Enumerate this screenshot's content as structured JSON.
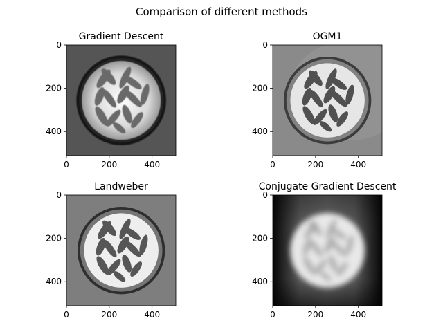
{
  "figure": {
    "suptitle": "Comparison of different methods"
  },
  "chart_data": [
    {
      "type": "heatmap",
      "title": "Gradient Descent",
      "xlim": [
        0,
        511
      ],
      "ylim": [
        511,
        0
      ],
      "xticks": [
        0,
        200,
        400
      ],
      "yticks": [
        0,
        200,
        400
      ],
      "colormap": "gray",
      "image": {
        "background": "#555555",
        "ring_color": "#151515",
        "disk_color": "#f4f4f4",
        "blob_color": "#6a6a6a",
        "halo": true,
        "blur": 0.6
      }
    },
    {
      "type": "heatmap",
      "title": "OGM1",
      "xlim": [
        0,
        511
      ],
      "ylim": [
        511,
        0
      ],
      "xticks": [
        0,
        200,
        400
      ],
      "yticks": [
        0,
        200,
        400
      ],
      "colormap": "gray",
      "image": {
        "background": "#8a8a8a",
        "ring_color": "#3c3c3c",
        "disk_color": "#e6e6e6",
        "blob_color": "#505050",
        "halo": false,
        "blur": 0
      }
    },
    {
      "type": "heatmap",
      "title": "Landweber",
      "xlim": [
        0,
        511
      ],
      "ylim": [
        511,
        0
      ],
      "xticks": [
        0,
        200,
        400
      ],
      "yticks": [
        0,
        200,
        400
      ],
      "colormap": "gray",
      "image": {
        "background": "#7e7e7e",
        "ring_color": "#2e2e2e",
        "disk_color": "#eeeeee",
        "blob_color": "#565656",
        "halo": false,
        "blur": 0
      }
    },
    {
      "type": "heatmap",
      "title": "Conjugate Gradient Descent",
      "xlim": [
        0,
        511
      ],
      "ylim": [
        511,
        0
      ],
      "xticks": [
        0,
        200,
        400
      ],
      "yticks": [
        0,
        200,
        400
      ],
      "colormap": "gray",
      "image": {
        "background": "#0a0a0a",
        "ring_color": "#3a3a3a",
        "disk_color": "#e8e8e8",
        "blob_color": "#a0a0a0",
        "halo": false,
        "blur": 4
      }
    }
  ]
}
